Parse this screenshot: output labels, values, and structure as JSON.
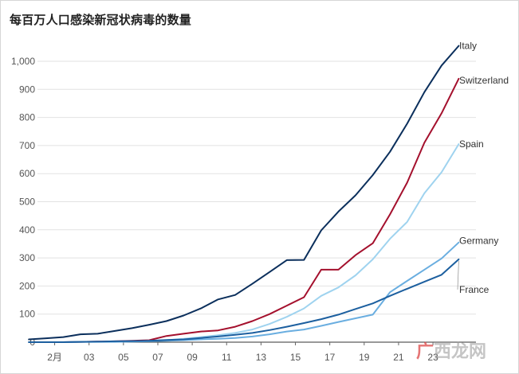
{
  "title": "每百万人口感染新冠状病毒的数量",
  "watermark": {
    "accent": "广",
    "rest": "西龙网"
  },
  "chart_data": {
    "type": "line",
    "title": "每百万人口感染新冠状病毒的数量",
    "xlabel": "",
    "ylabel": "",
    "ylim": [
      0,
      1000
    ],
    "yticks": [
      0,
      100,
      200,
      300,
      400,
      500,
      600,
      700,
      800,
      900,
      1000
    ],
    "ytick_labels": [
      "0",
      "100",
      "200",
      "300",
      "400",
      "500",
      "600",
      "700",
      "800",
      "900",
      "1,000"
    ],
    "x_domain": [
      0,
      25.5
    ],
    "xticks": [
      {
        "x": 1,
        "label": "2月"
      },
      {
        "x": 3,
        "label": "03"
      },
      {
        "x": 5,
        "label": "05"
      },
      {
        "x": 7,
        "label": "07"
      },
      {
        "x": 9,
        "label": "09"
      },
      {
        "x": 11,
        "label": "11"
      },
      {
        "x": 13,
        "label": "13"
      },
      {
        "x": 15,
        "label": "15"
      },
      {
        "x": 17,
        "label": "17"
      },
      {
        "x": 19,
        "label": "19"
      },
      {
        "x": 21,
        "label": "21"
      },
      {
        "x": 23,
        "label": "23"
      }
    ],
    "grid": true,
    "legend": "end-of-line labels",
    "x": [
      -0.5,
      0.5,
      1.5,
      2.5,
      3.5,
      4.5,
      5.5,
      6.5,
      7.5,
      8.5,
      9.5,
      10.5,
      11.5,
      12.5,
      13.5,
      14.5,
      15.5,
      16.5,
      17.5,
      18.5,
      19.5,
      20.5,
      21.5,
      22.5,
      23.5,
      24.5
    ],
    "series": [
      {
        "name": "Italy",
        "color": "#0b2f5c",
        "values": [
          10,
          14,
          18,
          28,
          30,
          40,
          50,
          62,
          75,
          95,
          120,
          152,
          168,
          208,
          250,
          292,
          293,
          398,
          465,
          523,
          595,
          678,
          778,
          890,
          985,
          1055
        ]
      },
      {
        "name": "Switzerland",
        "color": "#a4102d",
        "values": [
          0,
          0,
          0,
          1,
          2,
          3,
          5,
          7,
          22,
          30,
          38,
          42,
          55,
          75,
          100,
          130,
          160,
          258,
          258,
          310,
          352,
          455,
          568,
          710,
          815,
          938
        ]
      },
      {
        "name": "Spain",
        "color": "#9fd3ef",
        "values": [
          0,
          0,
          0,
          1,
          1,
          2,
          3,
          5,
          7,
          12,
          18,
          25,
          33,
          45,
          65,
          90,
          120,
          165,
          195,
          238,
          295,
          368,
          428,
          530,
          605,
          705
        ]
      },
      {
        "name": "Germany",
        "color": "#6aaee0",
        "values": [
          0,
          0,
          0,
          1,
          1,
          1,
          2,
          3,
          5,
          7,
          10,
          12,
          15,
          20,
          28,
          38,
          45,
          58,
          72,
          85,
          98,
          178,
          218,
          258,
          298,
          355
        ]
      },
      {
        "name": "France",
        "color": "#1c5f9f",
        "values": [
          0,
          0,
          0,
          1,
          2,
          3,
          4,
          5,
          8,
          10,
          15,
          20,
          26,
          33,
          43,
          55,
          68,
          82,
          98,
          118,
          138,
          165,
          190,
          215,
          240,
          295
        ]
      }
    ]
  }
}
